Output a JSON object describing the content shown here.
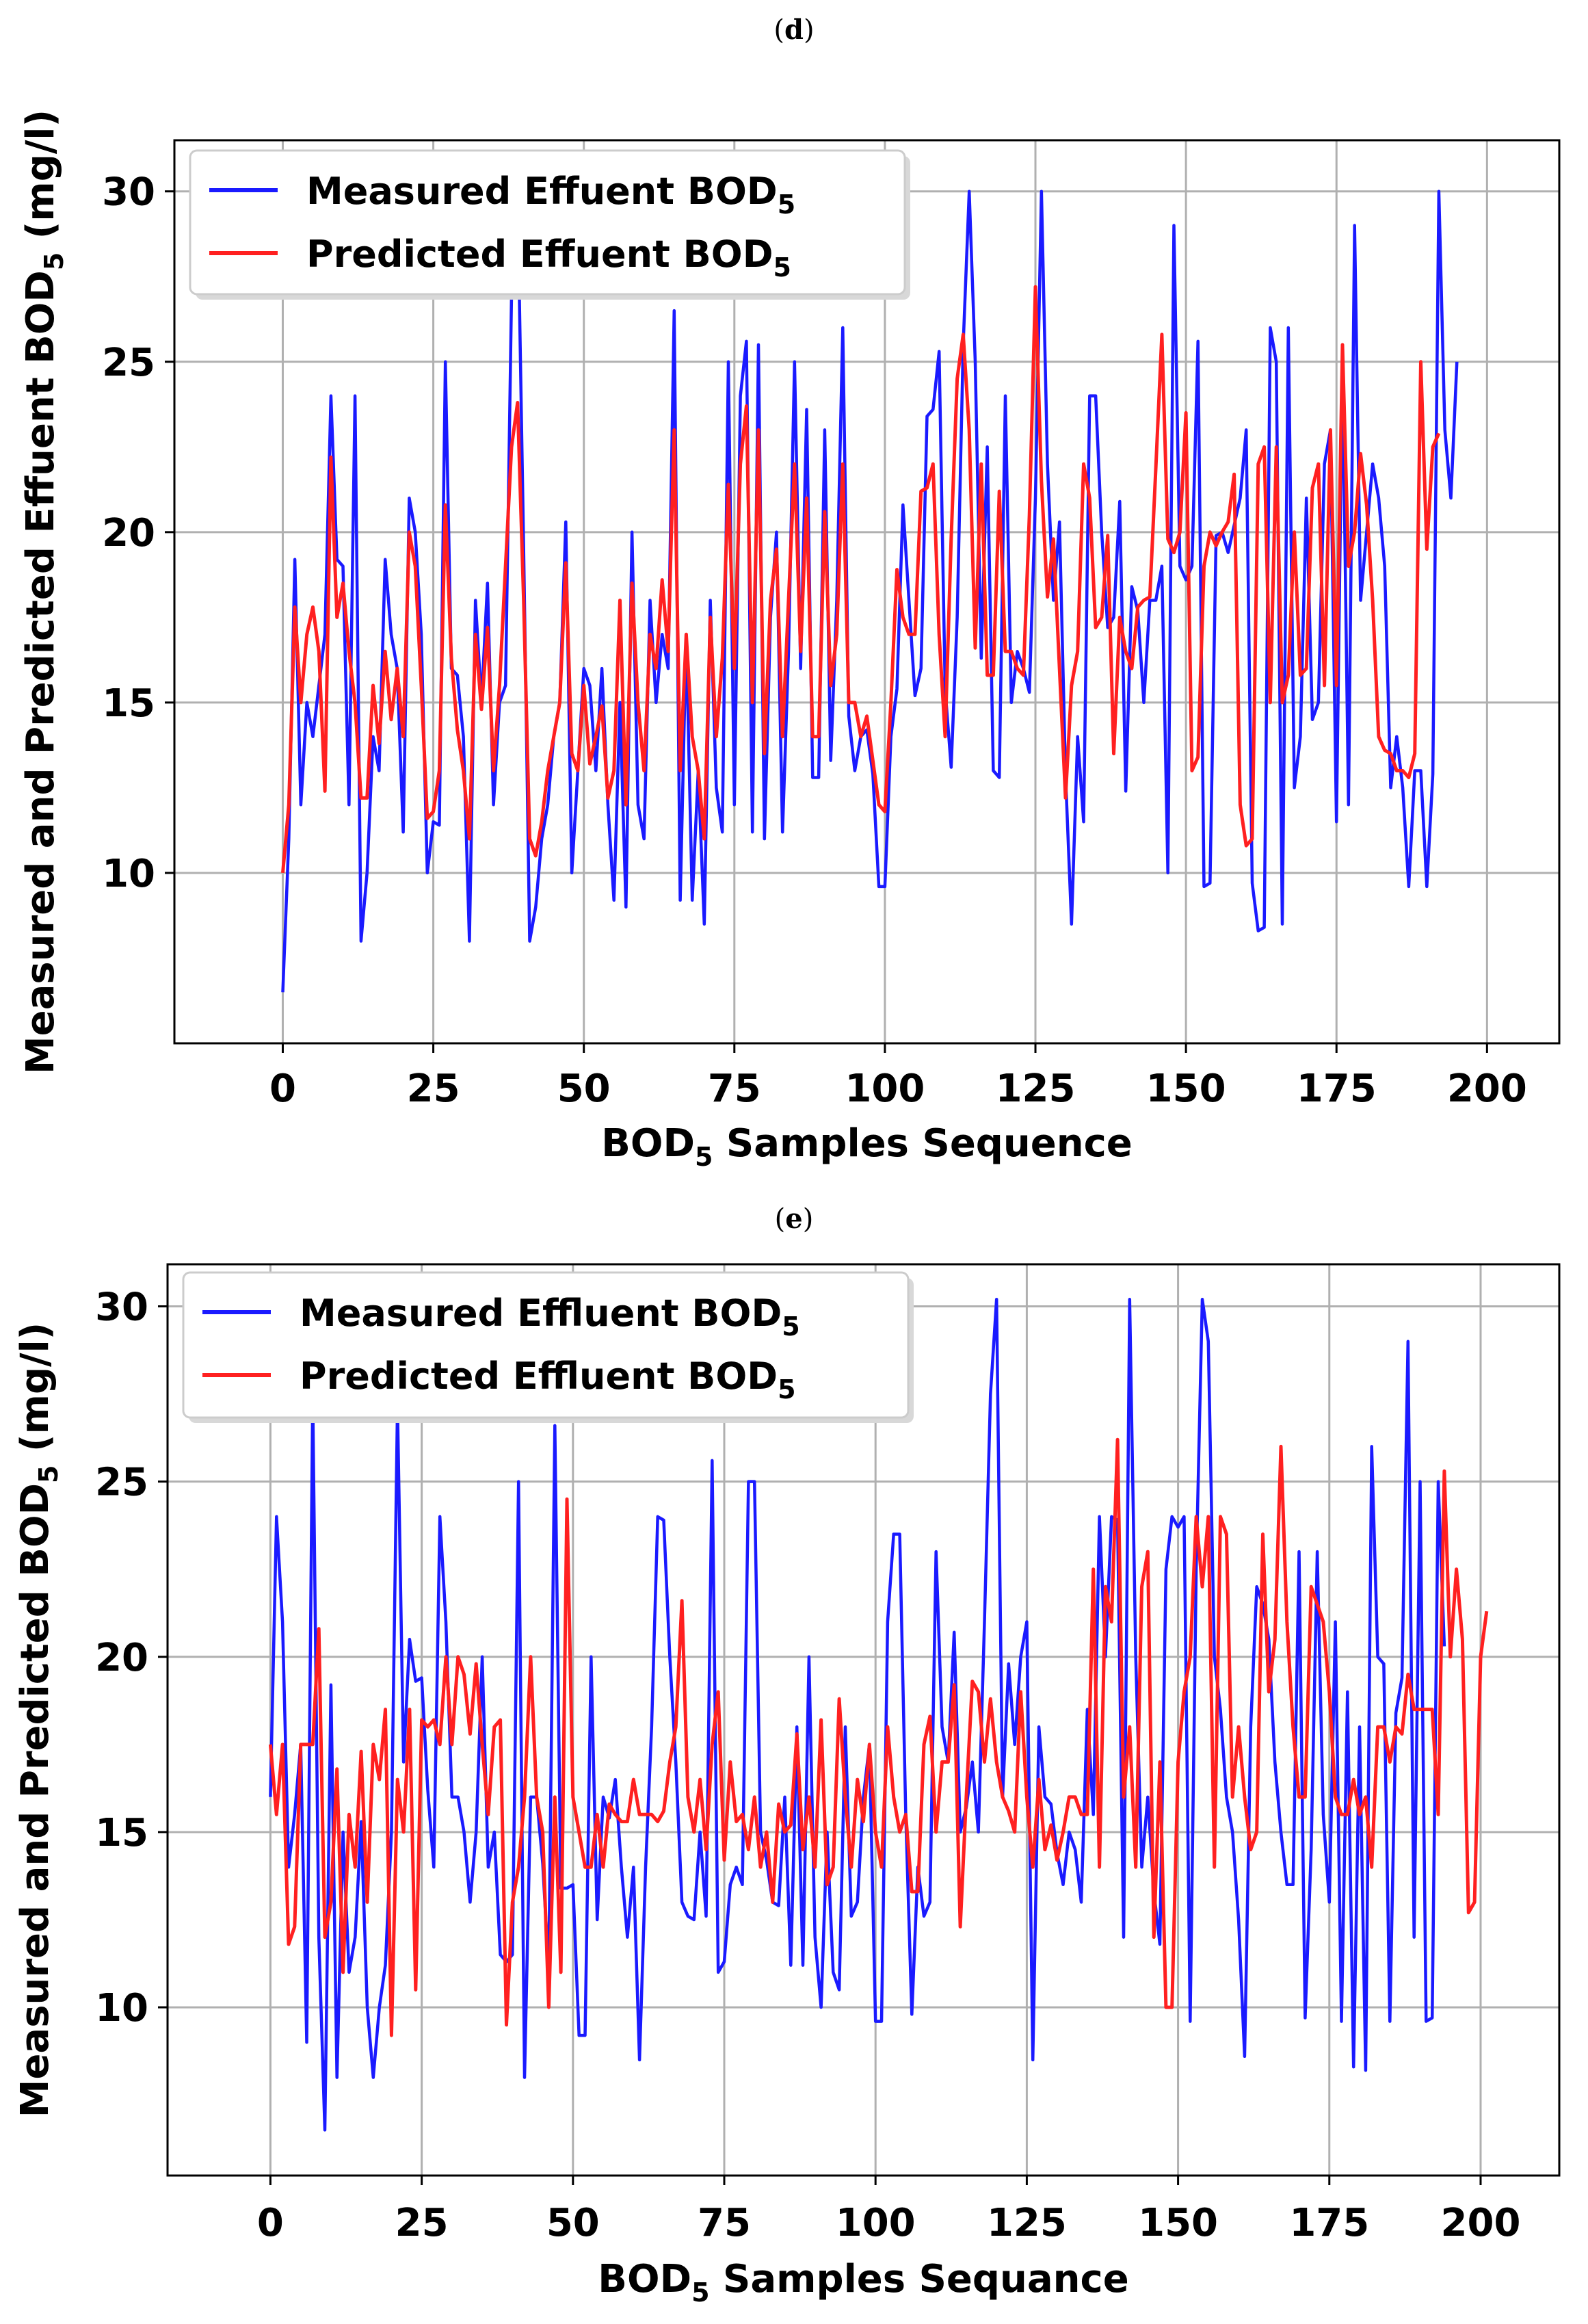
{
  "chart_data": [
    {
      "type": "line",
      "panel_label_open": "(",
      "panel_label_letter": "d",
      "panel_label_close": ")",
      "xlabel": "BOD",
      "xlabel_sub": "5",
      "xlabel_rest": " Samples Sequence",
      "ylabel": "Measured and Predicted Effuent BOD",
      "ylabel_sub": "5",
      "ylabel_rest": " (mg/l)",
      "xlim": [
        -18,
        212
      ],
      "ylim": [
        5,
        31.5
      ],
      "xticks": [
        0,
        25,
        50,
        75,
        100,
        125,
        150,
        175,
        200
      ],
      "yticks": [
        10,
        15,
        20,
        25,
        30
      ],
      "grid": true,
      "legend_position": "top-left",
      "series": [
        {
          "name": "Measured Effuent BOD",
          "name_sub": "5",
          "color": "#1a1aff",
          "values": [
            6.5,
            11,
            19.2,
            12,
            15,
            14,
            15.5,
            17,
            24,
            19.2,
            19,
            12,
            24,
            8,
            10,
            14,
            13,
            19.2,
            17,
            16,
            11.2,
            21,
            20,
            17,
            10,
            11.5,
            11.4,
            25,
            16,
            15.8,
            14,
            8,
            18,
            15,
            18.5,
            12,
            15,
            15.5,
            27,
            30,
            19.5,
            8,
            9,
            11,
            12,
            14,
            15,
            20.3,
            10,
            13,
            16,
            15.5,
            13,
            16,
            12,
            9.2,
            15,
            9,
            20,
            12,
            11,
            18,
            15,
            17,
            16,
            26.5,
            9.2,
            17,
            9.2,
            13,
            8.5,
            18,
            12.5,
            11.2,
            25,
            12,
            24,
            25.6,
            11.2,
            25.5,
            11,
            17.5,
            20,
            11.2,
            16.5,
            25,
            16,
            23.6,
            12.8,
            12.8,
            23,
            13.3,
            18,
            26,
            14.6,
            13,
            14,
            14.2,
            12.9,
            9.6,
            9.6,
            14,
            15.4,
            20.8,
            18,
            15.2,
            16,
            23.4,
            23.6,
            25.3,
            15.4,
            13.1,
            17.5,
            25.5,
            30,
            25,
            16.3,
            22.5,
            13,
            12.8,
            24,
            15,
            16.5,
            16,
            15.3,
            21,
            30,
            22,
            18,
            20.3,
            12.9,
            8.5,
            14,
            11.5,
            24,
            24,
            20,
            17.2,
            17.5,
            20.9,
            12.4,
            18.4,
            17.7,
            15,
            18,
            18,
            19,
            10,
            29,
            19,
            18.6,
            19,
            25.6,
            9.6,
            9.7,
            19.9,
            20,
            19.4,
            20.2,
            21,
            23,
            9.7,
            8.3,
            8.4,
            26,
            25,
            8.5,
            26,
            12.5,
            14,
            21,
            14.5,
            15,
            22,
            23,
            11.5,
            25,
            12,
            29,
            18,
            20,
            22,
            21,
            19,
            12.5,
            14,
            12.5,
            9.6,
            13,
            13,
            9.6,
            12.9,
            30,
            23,
            21,
            25
          ]
        },
        {
          "name": "Predicted Effuent BOD",
          "name_sub": "5",
          "color": "#ff2020",
          "values": [
            10,
            12,
            17.8,
            15,
            17,
            17.8,
            16.5,
            12.4,
            22.2,
            17.5,
            18.5,
            16.5,
            15,
            12.2,
            12.2,
            15.5,
            13.8,
            16.5,
            14.5,
            16,
            14,
            20,
            19,
            15.5,
            11.6,
            11.8,
            13,
            20.8,
            16.3,
            14.2,
            13,
            11,
            17,
            14.8,
            17.2,
            13,
            15.5,
            19,
            22.5,
            23.8,
            18,
            11,
            10.5,
            11.5,
            13,
            14,
            15,
            19.1,
            13.5,
            13,
            15.5,
            13.2,
            14,
            14.9,
            12.2,
            13,
            18,
            12,
            18.5,
            15,
            13,
            17,
            16,
            18.6,
            16.5,
            23,
            13,
            17,
            14,
            13,
            11,
            17.5,
            14,
            16.3,
            21.4,
            16,
            22,
            23.7,
            15,
            23,
            13.5,
            18,
            19.5,
            14,
            18,
            22,
            16.5,
            21,
            14,
            14,
            20.6,
            15.5,
            17,
            22,
            15,
            15,
            14,
            14.6,
            13.3,
            12,
            11.8,
            15,
            18.9,
            17.5,
            17,
            17,
            21.2,
            21.3,
            22,
            17,
            14,
            19.8,
            24.5,
            25.8,
            23,
            16.6,
            22,
            15.8,
            15.8,
            21.2,
            16.5,
            16.5,
            16,
            15.8,
            20.5,
            27.2,
            21.5,
            18.1,
            19.8,
            16,
            12.2,
            15.5,
            16.5,
            22,
            21,
            17.2,
            17.5,
            19.9,
            13.5,
            17.5,
            16.5,
            16,
            17.8,
            18,
            18.1,
            21.9,
            25.8,
            19.8,
            19.4,
            20,
            23.5,
            13,
            13.4,
            19,
            20,
            19.6,
            20,
            20.3,
            21.7,
            12,
            10.8,
            11,
            22,
            22.5,
            15,
            22.5,
            15,
            15.8,
            20,
            15.8,
            16,
            21.3,
            22,
            15.5,
            23,
            15.5,
            25.5,
            19,
            20,
            22.3,
            20.8,
            18,
            14,
            13.6,
            13.5,
            13,
            13,
            12.8,
            13.5,
            25,
            19.5,
            22.5,
            22.9
          ]
        }
      ]
    },
    {
      "type": "line",
      "panel_label_open": "(",
      "panel_label_letter": "e",
      "panel_label_close": ")",
      "xlabel": "BOD",
      "xlabel_sub": "5",
      "xlabel_rest": " Samples Sequance",
      "ylabel": "Measured and Predicted BOD",
      "ylabel_sub": "5",
      "ylabel_rest": " (mg/l)",
      "xlim": [
        -17,
        213
      ],
      "ylim": [
        5.2,
        31.2
      ],
      "xticks": [
        0,
        25,
        50,
        75,
        100,
        125,
        150,
        175,
        200
      ],
      "yticks": [
        10,
        15,
        20,
        25,
        30
      ],
      "grid": true,
      "legend_position": "top-left",
      "series": [
        {
          "name": "Measured Effluent BOD",
          "name_sub": "5",
          "color": "#1a1aff",
          "values": [
            16,
            24,
            21,
            14,
            15.5,
            17.5,
            9,
            27.5,
            12,
            6.5,
            19.2,
            8,
            15,
            11,
            12,
            15.3,
            10,
            8,
            10,
            11.2,
            15,
            27.2,
            17,
            20.5,
            19.3,
            19.4,
            16.2,
            14,
            24,
            21,
            16,
            16,
            15,
            13,
            15,
            20,
            14,
            15,
            11.5,
            11.3,
            11.5,
            25,
            8,
            16,
            16,
            14.1,
            11,
            26.6,
            13.4,
            13.4,
            13.5,
            9.2,
            9.2,
            20,
            12.5,
            16,
            15.4,
            16.5,
            14,
            12,
            14,
            8.5,
            14,
            18,
            24,
            23.9,
            20,
            17,
            13,
            12.6,
            12.5,
            15,
            12.6,
            25.6,
            11,
            11.3,
            13.5,
            14,
            13.5,
            25,
            25,
            15,
            14.2,
            13,
            12.9,
            16,
            11.2,
            18,
            11.2,
            20,
            12,
            10,
            15,
            11,
            10.5,
            18,
            12.6,
            13,
            16,
            17.5,
            9.6,
            9.6,
            21,
            23.5,
            23.5,
            15.5,
            9.8,
            14,
            12.6,
            13,
            23,
            18,
            17,
            20.7,
            15,
            15.7,
            17,
            15,
            21,
            27.5,
            30.2,
            16,
            19.8,
            17.5,
            20,
            21,
            8.5,
            18,
            16,
            15.8,
            14.4,
            13.5,
            15,
            14.5,
            13,
            18.5,
            15.5,
            24,
            20,
            24,
            23.9,
            12,
            30.2,
            20,
            14,
            16,
            13.3,
            11.8,
            22.5,
            24,
            23.7,
            24,
            9.6,
            22.5,
            30.2,
            29,
            20,
            18.5,
            16,
            15,
            12.5,
            8.6,
            18,
            22,
            21.5,
            20.5,
            17,
            15,
            13.5,
            13.5,
            23,
            9.7,
            14.5,
            23,
            15.5,
            13,
            21,
            9.6,
            19,
            8.3,
            18,
            8.2,
            26,
            20,
            19.8,
            9.6,
            18.4,
            19.4,
            29,
            12,
            25,
            9.6,
            9.7,
            25,
            20.3
          ]
        },
        {
          "name": "Predicted Effluent BOD",
          "name_sub": "5",
          "color": "#ff2020",
          "values": [
            17.5,
            15.5,
            17.5,
            11.8,
            12.3,
            17.5,
            17.5,
            17.5,
            20.8,
            12,
            13,
            16.8,
            11,
            15.5,
            14,
            17.3,
            13,
            17.5,
            16.5,
            18.5,
            9.2,
            16.5,
            15,
            18.5,
            10.5,
            18.2,
            18,
            18.2,
            17.5,
            20,
            17.5,
            20,
            19.5,
            17.8,
            19.8,
            17.5,
            15.5,
            18,
            18.2,
            9.5,
            13,
            14,
            16,
            20,
            16,
            15,
            10,
            16,
            11,
            24.5,
            16,
            15,
            14,
            14,
            15.5,
            14,
            15.8,
            15.5,
            15.3,
            15.3,
            16.5,
            15.5,
            15.5,
            15.5,
            15.3,
            15.6,
            17,
            18,
            21.6,
            16,
            15,
            16.5,
            14.5,
            17.5,
            19,
            14.2,
            17,
            15.3,
            15.5,
            14.5,
            16,
            14,
            15,
            13,
            15.8,
            15,
            15.2,
            17.8,
            14.5,
            16,
            14,
            18.2,
            13.5,
            14,
            18.8,
            16,
            14,
            16.5,
            15.3,
            17.5,
            15,
            14,
            18,
            16,
            15,
            15.5,
            13.3,
            13.3,
            17.5,
            18.3,
            15,
            17,
            17,
            19.2,
            12.3,
            16,
            19.3,
            19,
            17,
            18.8,
            17,
            16,
            15.6,
            15,
            19,
            16,
            14,
            16.5,
            14.5,
            15.2,
            14.2,
            15,
            16,
            16,
            15.5,
            15.5,
            22.5,
            14,
            22,
            21,
            26.2,
            16,
            18,
            14,
            22,
            23,
            12,
            17,
            10,
            10,
            17,
            19,
            20,
            24,
            22,
            24,
            14,
            24,
            23.5,
            16,
            18,
            16,
            14.5,
            15,
            23.5,
            19,
            20.5,
            26,
            21,
            18,
            16,
            16,
            22,
            21.5,
            21,
            19,
            16,
            15.5,
            15.5,
            16.5,
            15.5,
            16,
            14,
            18,
            18,
            17,
            18,
            17.8,
            19.5,
            18.5,
            18.5,
            18.5,
            18.5,
            15.5,
            25.3,
            20,
            22.5,
            20.5,
            12.7,
            13,
            20,
            21.3
          ]
        }
      ]
    }
  ]
}
